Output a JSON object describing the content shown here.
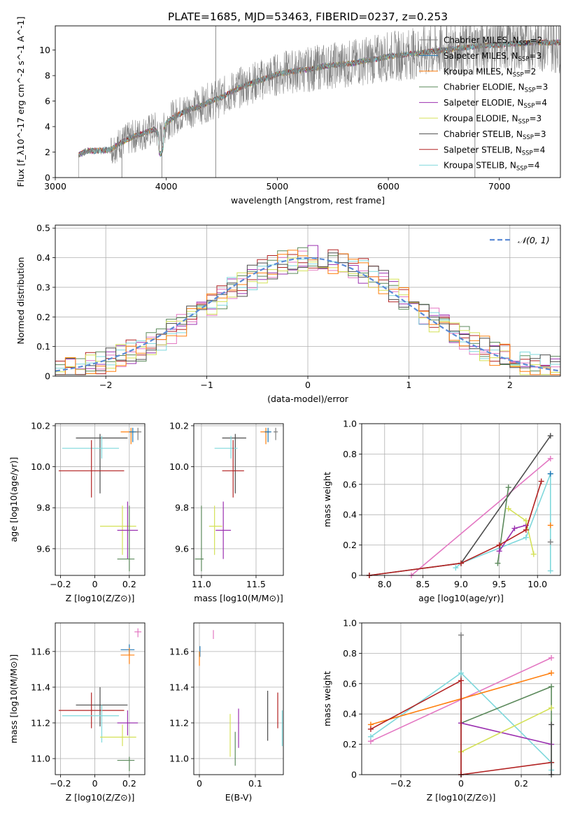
{
  "figure": {
    "title": "PLATE=1685, MJD=53463, FIBERID=0237, z=0.253"
  },
  "colors": {
    "Chabrier MILES": "#7f7f7f",
    "Salpeter MILES": "#1f77b4",
    "Kroupa MILES": "#ff7f0e",
    "Chabrier ELODIE": "#5c8a5c",
    "Salpeter ELODIE": "#9b30b0",
    "Kroupa ELODIE": "#d4e157",
    "Chabrier STELIB": "#4d4d4d",
    "Salpeter STELIB": "#b22222",
    "Kroupa STELIB": "#7fd8dc",
    "Salpeter ELODIE pink": "#e377c2",
    "normal": "#5b8bd6",
    "grid": "#b0b0b0"
  },
  "chart_data": [
    {
      "id": "spectrum",
      "type": "line",
      "xlabel": "wavelength [Angstrom, rest frame]",
      "ylabel": "Flux [f_λ10^-17 erg cm^-2 s^-1 A^-1]",
      "xlim": [
        3000,
        7550
      ],
      "ylim": [
        0,
        11.9
      ],
      "xticks": [
        3000,
        4000,
        5000,
        6000,
        7000
      ],
      "yticks": [
        0,
        2,
        4,
        6,
        8,
        10
      ],
      "grid": false,
      "legend_position": "top-right",
      "legend": [
        {
          "label": "Chabrier MILES, N_SSP=2",
          "color": "#7f7f7f"
        },
        {
          "label": "Salpeter MILES, N_SSP=3",
          "color": "#1f77b4"
        },
        {
          "label": "Kroupa MILES, N_SSP=2",
          "color": "#ff7f0e"
        },
        {
          "label": "Chabrier ELODIE, N_SSP=3",
          "color": "#5c8a5c"
        },
        {
          "label": "Salpeter ELODIE, N_SSP=4",
          "color": "#9b30b0"
        },
        {
          "label": "Kroupa ELODIE, N_SSP=3",
          "color": "#d4e157"
        },
        {
          "label": "Chabrier STELIB, N_SSP=3",
          "color": "#4d4d4d"
        },
        {
          "label": "Salpeter STELIB, N_SSP=4",
          "color": "#b22222"
        },
        {
          "label": "Kroupa STELIB, N_SSP=4",
          "color": "#7fd8dc"
        }
      ],
      "continuum": {
        "x": [
          3210,
          3300,
          3400,
          3500,
          3600,
          3700,
          3800,
          3900,
          3950,
          4000,
          4100,
          4200,
          4300,
          4400,
          4500,
          4600,
          4700,
          4800,
          4900,
          5000,
          5100,
          5200,
          5300,
          5400,
          5500,
          5600,
          5700,
          5800,
          5900,
          6000,
          6100,
          6200,
          6300,
          6400,
          6500,
          6600,
          6700,
          6800,
          6900,
          7000,
          7100,
          7200,
          7300,
          7400,
          7550
        ],
        "y": [
          1.8,
          2.1,
          2.1,
          2.2,
          2.8,
          3.2,
          3.5,
          3.8,
          3.0,
          4.3,
          4.9,
          5.3,
          5.6,
          6.0,
          6.3,
          6.8,
          7.2,
          7.5,
          7.8,
          8.1,
          8.3,
          8.4,
          8.5,
          8.7,
          8.8,
          8.9,
          9.0,
          9.2,
          9.3,
          9.5,
          9.6,
          9.7,
          9.8,
          9.9,
          10.0,
          10.1,
          10.2,
          10.3,
          10.4,
          10.4,
          10.5,
          10.5,
          10.6,
          10.6,
          10.6
        ]
      }
    },
    {
      "id": "residuals",
      "type": "step",
      "xlabel": "(data-model)/error",
      "ylabel": "Normed distribution",
      "xlim": [
        -2.5,
        2.5
      ],
      "ylim": [
        0,
        0.51
      ],
      "xticks": [
        -2,
        -1,
        0,
        1,
        2
      ],
      "yticks": [
        0.0,
        0.1,
        0.2,
        0.3,
        0.4,
        0.5
      ],
      "grid": true,
      "legend": [
        {
          "label": "𝒩(0, 1)",
          "color": "#5b8bd6"
        }
      ],
      "legend_position": "top-right",
      "bin_width": 0.1
    },
    {
      "id": "age-vs-Z",
      "type": "errorbar",
      "xlabel": "Z [log10(Z/Z⊙)]",
      "ylabel": "age [log10(age/yr)]",
      "xlim": [
        -0.23,
        0.29
      ],
      "ylim": [
        9.47,
        10.21
      ],
      "xticks": [
        -0.2,
        0.0,
        0.2
      ],
      "yticks": [
        9.6,
        9.8,
        10.0,
        10.2
      ],
      "grid": true,
      "points": [
        {
          "name": "Kroupa MILES",
          "color": "#ff7f0e",
          "x": 0.21,
          "xerr": [
            0.06,
            0.04
          ],
          "y": 10.17,
          "yerr": [
            0.06,
            0.02
          ]
        },
        {
          "name": "Salpeter MILES",
          "color": "#1f77b4",
          "x": 0.22,
          "xerr": [
            0.02,
            0.02
          ],
          "y": 10.17,
          "yerr": [
            0.05,
            0.02
          ]
        },
        {
          "name": "Chabrier MILES",
          "color": "#7f7f7f",
          "x": 0.25,
          "xerr": [
            0.01,
            0.02
          ],
          "y": 10.17,
          "yerr": [
            0.04,
            0.02
          ]
        },
        {
          "name": "Chabrier STELIB",
          "color": "#4d4d4d",
          "x": 0.03,
          "xerr": [
            0.14,
            0.16
          ],
          "y": 10.14,
          "yerr": [
            0.27,
            0.02
          ]
        },
        {
          "name": "Kroupa STELIB",
          "color": "#7fd8dc",
          "x": 0.04,
          "xerr": [
            0.23,
            0.1
          ],
          "y": 10.09,
          "yerr": [
            0.05,
            0.06
          ]
        },
        {
          "name": "Salpeter STELIB",
          "color": "#b22222",
          "x": -0.02,
          "xerr": [
            0.19,
            0.19
          ],
          "y": 9.98,
          "yerr": [
            0.13,
            0.15
          ]
        },
        {
          "name": "Kroupa ELODIE",
          "color": "#d4e157",
          "x": 0.16,
          "xerr": [
            0.13,
            0.08
          ],
          "y": 9.71,
          "yerr": [
            0.14,
            0.1
          ]
        },
        {
          "name": "Salpeter ELODIE",
          "color": "#9b30b0",
          "x": 0.19,
          "xerr": [
            0.06,
            0.06
          ],
          "y": 9.69,
          "yerr": [
            0.14,
            0.14
          ]
        },
        {
          "name": "Chabrier ELODIE",
          "color": "#5c8a5c",
          "x": 0.2,
          "xerr": [
            0.07,
            0.03
          ],
          "y": 9.55,
          "yerr": [
            0.06,
            0.26
          ]
        }
      ]
    },
    {
      "id": "age-vs-mass",
      "type": "errorbar",
      "xlabel": "mass [log10(M/M⊙)]",
      "ylabel": "",
      "xlim": [
        10.93,
        11.75
      ],
      "ylim": [
        9.47,
        10.21
      ],
      "xticks": [
        11.0,
        11.5
      ],
      "yticks": [
        9.6,
        9.8,
        10.0,
        10.2
      ],
      "grid": true,
      "points": [
        {
          "name": "Kroupa MILES",
          "color": "#ff7f0e",
          "x": 11.59,
          "xerr": [
            0.05,
            0.04
          ],
          "y": 10.17,
          "yerr": [
            0.06,
            0.02
          ]
        },
        {
          "name": "Salpeter MILES",
          "color": "#1f77b4",
          "x": 11.61,
          "xerr": [
            0.03,
            0.03
          ],
          "y": 10.17,
          "yerr": [
            0.05,
            0.02
          ]
        },
        {
          "name": "Chabrier MILES",
          "color": "#7f7f7f",
          "x": 11.68,
          "xerr": [
            0.02,
            0.02
          ],
          "y": 10.17,
          "yerr": [
            0.04,
            0.02
          ]
        },
        {
          "name": "Chabrier STELIB",
          "color": "#4d4d4d",
          "x": 11.31,
          "xerr": [
            0.12,
            0.1
          ],
          "y": 10.14,
          "yerr": [
            0.27,
            0.02
          ]
        },
        {
          "name": "Kroupa STELIB",
          "color": "#7fd8dc",
          "x": 11.27,
          "xerr": [
            0.15,
            0.06
          ],
          "y": 10.09,
          "yerr": [
            0.05,
            0.06
          ]
        },
        {
          "name": "Salpeter STELIB",
          "color": "#b22222",
          "x": 11.29,
          "xerr": [
            0.1,
            0.1
          ],
          "y": 9.98,
          "yerr": [
            0.13,
            0.15
          ]
        },
        {
          "name": "Kroupa ELODIE",
          "color": "#d4e157",
          "x": 11.12,
          "xerr": [
            0.05,
            0.07
          ],
          "y": 9.71,
          "yerr": [
            0.14,
            0.1
          ]
        },
        {
          "name": "Salpeter ELODIE",
          "color": "#9b30b0",
          "x": 11.2,
          "xerr": [
            0.07,
            0.07
          ],
          "y": 9.69,
          "yerr": [
            0.14,
            0.14
          ]
        },
        {
          "name": "Chabrier ELODIE",
          "color": "#5c8a5c",
          "x": 11.0,
          "xerr": [
            0.06,
            0.02
          ],
          "y": 9.55,
          "yerr": [
            0.06,
            0.26
          ]
        }
      ]
    },
    {
      "id": "weight-vs-age",
      "type": "line",
      "xlabel": "age [log10(age/yr)]",
      "ylabel": "mass weight",
      "xlim": [
        7.7,
        10.3
      ],
      "ylim": [
        0,
        1.0
      ],
      "xticks": [
        8.0,
        8.5,
        9.0,
        9.5,
        10.0
      ],
      "yticks": [
        0.0,
        0.2,
        0.4,
        0.6,
        0.8,
        1.0
      ],
      "grid": true,
      "series": [
        {
          "color": "#e377c2",
          "x": [
            8.35,
            10.17
          ],
          "y": [
            0.0,
            0.77
          ]
        },
        {
          "color": "#4d4d4d",
          "x": [
            7.8,
            9.0,
            10.17
          ],
          "y": [
            0.0,
            0.08,
            0.92
          ]
        },
        {
          "color": "#7fd8dc",
          "x": [
            8.93,
            9.0,
            9.85,
            10.17,
            10.17
          ],
          "y": [
            0.05,
            0.08,
            0.25,
            0.67,
            0.03
          ]
        },
        {
          "color": "#5c8a5c",
          "x": [
            9.48,
            9.62
          ],
          "y": [
            0.08,
            0.58
          ]
        },
        {
          "color": "#9b30b0",
          "x": [
            9.5,
            9.7,
            9.85
          ],
          "y": [
            0.16,
            0.31,
            0.33
          ]
        },
        {
          "color": "#d4e157",
          "x": [
            9.62,
            9.85,
            9.95
          ],
          "y": [
            0.44,
            0.36,
            0.14
          ]
        },
        {
          "color": "#b22222",
          "x": [
            7.8,
            9.0,
            9.5,
            9.85,
            10.05
          ],
          "y": [
            0.0,
            0.08,
            0.2,
            0.3,
            0.62
          ]
        },
        {
          "color": "#ff7f0e",
          "x": [
            10.17
          ],
          "y": [
            0.33
          ]
        },
        {
          "color": "#1f77b4",
          "x": [
            10.17
          ],
          "y": [
            0.67
          ]
        },
        {
          "color": "#7f7f7f",
          "x": [
            10.17
          ],
          "y": [
            0.22
          ]
        }
      ]
    },
    {
      "id": "mass-vs-Z",
      "type": "errorbar",
      "xlabel": "Z [log10(Z/Z⊙)]",
      "ylabel": "mass [log10(M/M⊙)]",
      "xlim": [
        -0.23,
        0.29
      ],
      "ylim": [
        10.91,
        11.76
      ],
      "xticks": [
        -0.2,
        0.0,
        0.2
      ],
      "yticks": [
        11.0,
        11.2,
        11.4,
        11.6
      ],
      "grid": true,
      "points": [
        {
          "name": "Salpeter ELODIE pink",
          "color": "#e377c2",
          "x": 0.25,
          "xerr": [
            0.02,
            0.02
          ],
          "y": 11.71,
          "yerr": [
            0.03,
            0.02
          ]
        },
        {
          "name": "Salpeter MILES",
          "color": "#1f77b4",
          "x": 0.2,
          "xerr": [
            0.05,
            0.03
          ],
          "y": 11.61,
          "yerr": [
            0.03,
            0.03
          ]
        },
        {
          "name": "Kroupa MILES",
          "color": "#ff7f0e",
          "x": 0.2,
          "xerr": [
            0.05,
            0.03
          ],
          "y": 11.58,
          "yerr": [
            0.05,
            0.04
          ]
        },
        {
          "name": "Chabrier STELIB",
          "color": "#4d4d4d",
          "x": 0.03,
          "xerr": [
            0.14,
            0.16
          ],
          "y": 11.3,
          "yerr": [
            0.12,
            0.1
          ]
        },
        {
          "name": "Salpeter STELIB",
          "color": "#b22222",
          "x": -0.02,
          "xerr": [
            0.19,
            0.19
          ],
          "y": 11.27,
          "yerr": [
            0.1,
            0.1
          ]
        },
        {
          "name": "Kroupa STELIB",
          "color": "#7fd8dc",
          "x": 0.04,
          "xerr": [
            0.23,
            0.1
          ],
          "y": 11.24,
          "yerr": [
            0.15,
            0.06
          ]
        },
        {
          "name": "Salpeter ELODIE",
          "color": "#9b30b0",
          "x": 0.19,
          "xerr": [
            0.06,
            0.06
          ],
          "y": 11.2,
          "yerr": [
            0.07,
            0.07
          ]
        },
        {
          "name": "Kroupa ELODIE",
          "color": "#d4e157",
          "x": 0.16,
          "xerr": [
            0.13,
            0.08
          ],
          "y": 11.12,
          "yerr": [
            0.05,
            0.07
          ]
        },
        {
          "name": "Chabrier ELODIE",
          "color": "#5c8a5c",
          "x": 0.2,
          "xerr": [
            0.07,
            0.03
          ],
          "y": 10.99,
          "yerr": [
            0.06,
            0.02
          ]
        }
      ]
    },
    {
      "id": "mass-vs-ebv",
      "type": "errorbar",
      "xlabel": "E(B-V)",
      "ylabel": "",
      "xlim": [
        -0.01,
        0.15
      ],
      "ylim": [
        10.91,
        11.76
      ],
      "xticks": [
        0.0,
        0.1
      ],
      "yticks": [
        11.0,
        11.2,
        11.4,
        11.6
      ],
      "grid": true,
      "points": [
        {
          "name": "Salpeter ELODIE pink",
          "color": "#e377c2",
          "x": 0.025,
          "xerr": [
            0.0,
            0.0
          ],
          "y": 11.7,
          "yerr": [
            0.03,
            0.02
          ]
        },
        {
          "name": "Salpeter MILES",
          "color": "#1f77b4",
          "x": 0.001,
          "xerr": [
            0.0,
            0.0
          ],
          "y": 11.6,
          "yerr": [
            0.03,
            0.03
          ]
        },
        {
          "name": "Kroupa MILES",
          "color": "#ff7f0e",
          "x": 0.0,
          "xerr": [
            0.0,
            0.0
          ],
          "y": 11.56,
          "yerr": [
            0.04,
            0.04
          ]
        },
        {
          "name": "Kroupa ELODIE",
          "color": "#d4e157",
          "x": 0.055,
          "xerr": [
            0.0,
            0.0
          ],
          "y": 11.13,
          "yerr": [
            0.12,
            0.12
          ]
        },
        {
          "name": "Chabrier ELODIE",
          "color": "#5c8a5c",
          "x": 0.064,
          "xerr": [
            0.0,
            0.0
          ],
          "y": 11.05,
          "yerr": [
            0.09,
            0.1
          ]
        },
        {
          "name": "Salpeter ELODIE",
          "color": "#9b30b0",
          "x": 0.07,
          "xerr": [
            0.0,
            0.0
          ],
          "y": 11.17,
          "yerr": [
            0.11,
            0.11
          ]
        },
        {
          "name": "Chabrier STELIB",
          "color": "#4d4d4d",
          "x": 0.122,
          "xerr": [
            0.0,
            0.0
          ],
          "y": 11.24,
          "yerr": [
            0.14,
            0.14
          ]
        },
        {
          "name": "Salpeter STELIB",
          "color": "#b22222",
          "x": 0.14,
          "xerr": [
            0.0,
            0.0
          ],
          "y": 11.27,
          "yerr": [
            0.1,
            0.1
          ]
        },
        {
          "name": "Kroupa STELIB",
          "color": "#7fd8dc",
          "x": 0.148,
          "xerr": [
            0.0,
            0.0
          ],
          "y": 11.17,
          "yerr": [
            0.1,
            0.1
          ]
        }
      ]
    },
    {
      "id": "weight-vs-Z",
      "type": "line",
      "xlabel": "Z [log10(Z/Z⊙)]",
      "ylabel": "mass weight",
      "xlim": [
        -0.33,
        0.33
      ],
      "ylim": [
        0,
        1.0
      ],
      "xticks": [
        -0.2,
        0.0,
        0.2
      ],
      "yticks": [
        0.0,
        0.2,
        0.4,
        0.6,
        0.8,
        1.0
      ],
      "grid": true,
      "series": [
        {
          "color": "#e377c2",
          "x": [
            -0.3,
            0.3
          ],
          "y": [
            0.22,
            0.77
          ]
        },
        {
          "color": "#7f7f7f",
          "x": [
            0.0,
            0.0
          ],
          "y": [
            0.0,
            0.92
          ]
        },
        {
          "color": "#7fd8dc",
          "x": [
            -0.3,
            0.0,
            0.3,
            0.3
          ],
          "y": [
            0.25,
            0.67,
            0.08,
            0.03
          ]
        },
        {
          "color": "#ff7f0e",
          "x": [
            -0.3,
            0.3
          ],
          "y": [
            0.33,
            0.67
          ]
        },
        {
          "color": "#5c8a5c",
          "x": [
            0.0,
            0.3,
            0.3
          ],
          "y": [
            0.34,
            0.58,
            0.08
          ]
        },
        {
          "color": "#9b30b0",
          "x": [
            0.0,
            0.3
          ],
          "y": [
            0.34,
            0.2
          ]
        },
        {
          "color": "#d4e157",
          "x": [
            0.0,
            0.3
          ],
          "y": [
            0.15,
            0.44
          ]
        },
        {
          "color": "#b22222",
          "x": [
            -0.3,
            0.0,
            0.0,
            0.3
          ],
          "y": [
            0.3,
            0.62,
            0.0,
            0.08
          ]
        },
        {
          "color": "#4d4d4d",
          "x": [
            0.3,
            0.3
          ],
          "y": [
            0.0,
            0.33
          ]
        }
      ]
    }
  ]
}
